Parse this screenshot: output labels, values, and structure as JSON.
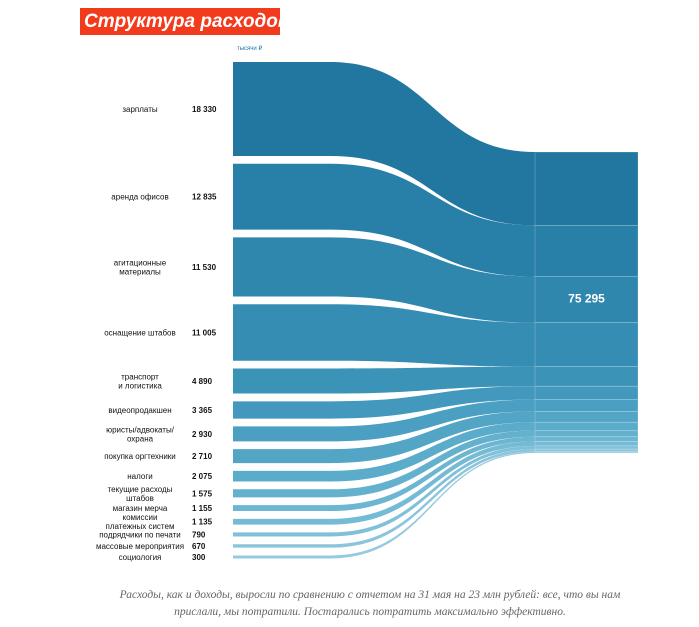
{
  "header": {
    "title": "Структура расходов"
  },
  "chart_data": {
    "type": "sankey",
    "unit_label": "тысячи ₽",
    "total": {
      "value": 75295,
      "label": "75 295"
    },
    "flows": [
      {
        "category": [
          "зарплаты"
        ],
        "value": 18330,
        "value_label": "18 330",
        "color": "#2277a0"
      },
      {
        "category": [
          "аренда офисов"
        ],
        "value": 12835,
        "value_label": "12 835",
        "color": "#287fa8"
      },
      {
        "category": [
          "агитационные",
          "материалы"
        ],
        "value": 11530,
        "value_label": "11 530",
        "color": "#2f87ad"
      },
      {
        "category": [
          "оснащение штабов"
        ],
        "value": 11005,
        "value_label": "11 005",
        "color": "#358db3"
      },
      {
        "category": [
          "транспорт",
          "и логистика"
        ],
        "value": 4890,
        "value_label": "4 890",
        "color": "#3b93b8"
      },
      {
        "category": [
          "видеопродакшен"
        ],
        "value": 3365,
        "value_label": "3 365",
        "color": "#4299bd"
      },
      {
        "category": [
          "юристы/адвокаты/",
          "охрана"
        ],
        "value": 2930,
        "value_label": "2 930",
        "color": "#4a9fc2"
      },
      {
        "category": [
          "покупка оргтехники"
        ],
        "value": 2710,
        "value_label": "2 710",
        "color": "#53a5c6"
      },
      {
        "category": [
          "налоги"
        ],
        "value": 2075,
        "value_label": "2 075",
        "color": "#5babca"
      },
      {
        "category": [
          "текущие расходы",
          "штабов"
        ],
        "value": 1575,
        "value_label": "1 575",
        "color": "#64b1ce"
      },
      {
        "category": [
          "магазин мерча"
        ],
        "value": 1155,
        "value_label": "1 155",
        "color": "#6db6d2"
      },
      {
        "category": [
          "комиссии",
          "платежных систем"
        ],
        "value": 1135,
        "value_label": "1 135",
        "color": "#76bbd5"
      },
      {
        "category": [
          "подрядчики по печати"
        ],
        "value": 790,
        "value_label": "790",
        "color": "#80c0d9"
      },
      {
        "category": [
          "массовые мероприятия"
        ],
        "value": 670,
        "value_label": "670",
        "color": "#8ac5dc"
      },
      {
        "category": [
          "социология"
        ],
        "value": 300,
        "value_label": "300",
        "color": "#95cae0"
      }
    ]
  },
  "caption": {
    "line1": "Расходы, как и доходы, выросли по сравнению с отчетом на 31 мая на 23 млн рублей: все, что вы нам",
    "line2": "прислали, мы потратили. Постарались потратить максимально эффективно."
  }
}
